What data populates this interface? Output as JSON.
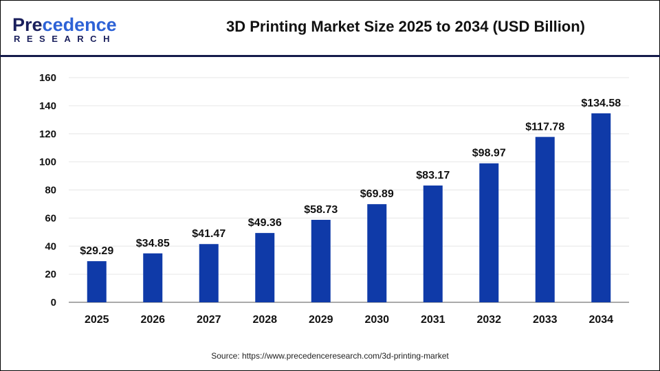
{
  "logo": {
    "line1_a": "Pre",
    "line1_b": "cedence",
    "line2": "RESEARCH"
  },
  "chart_data": {
    "type": "bar",
    "title": "3D Printing Market Size 2025 to 2034 (USD Billion)",
    "categories": [
      "2025",
      "2026",
      "2027",
      "2028",
      "2029",
      "2030",
      "2031",
      "2032",
      "2033",
      "2034"
    ],
    "values": [
      29.29,
      34.85,
      41.47,
      49.36,
      58.73,
      69.89,
      83.17,
      98.97,
      117.78,
      134.58
    ],
    "data_labels": [
      "$29.29",
      "$34.85",
      "$41.47",
      "$49.36",
      "$58.73",
      "$69.89",
      "$83.17",
      "$98.97",
      "$117.78",
      "$134.58"
    ],
    "xlabel": "",
    "ylabel": "",
    "ylim": [
      0,
      160
    ],
    "yticks": [
      0,
      20,
      40,
      60,
      80,
      100,
      120,
      140,
      160
    ],
    "grid": true,
    "bar_color": "#0f3aa8"
  },
  "source": "Source: https://www.precedenceresearch.com/3d-printing-market"
}
